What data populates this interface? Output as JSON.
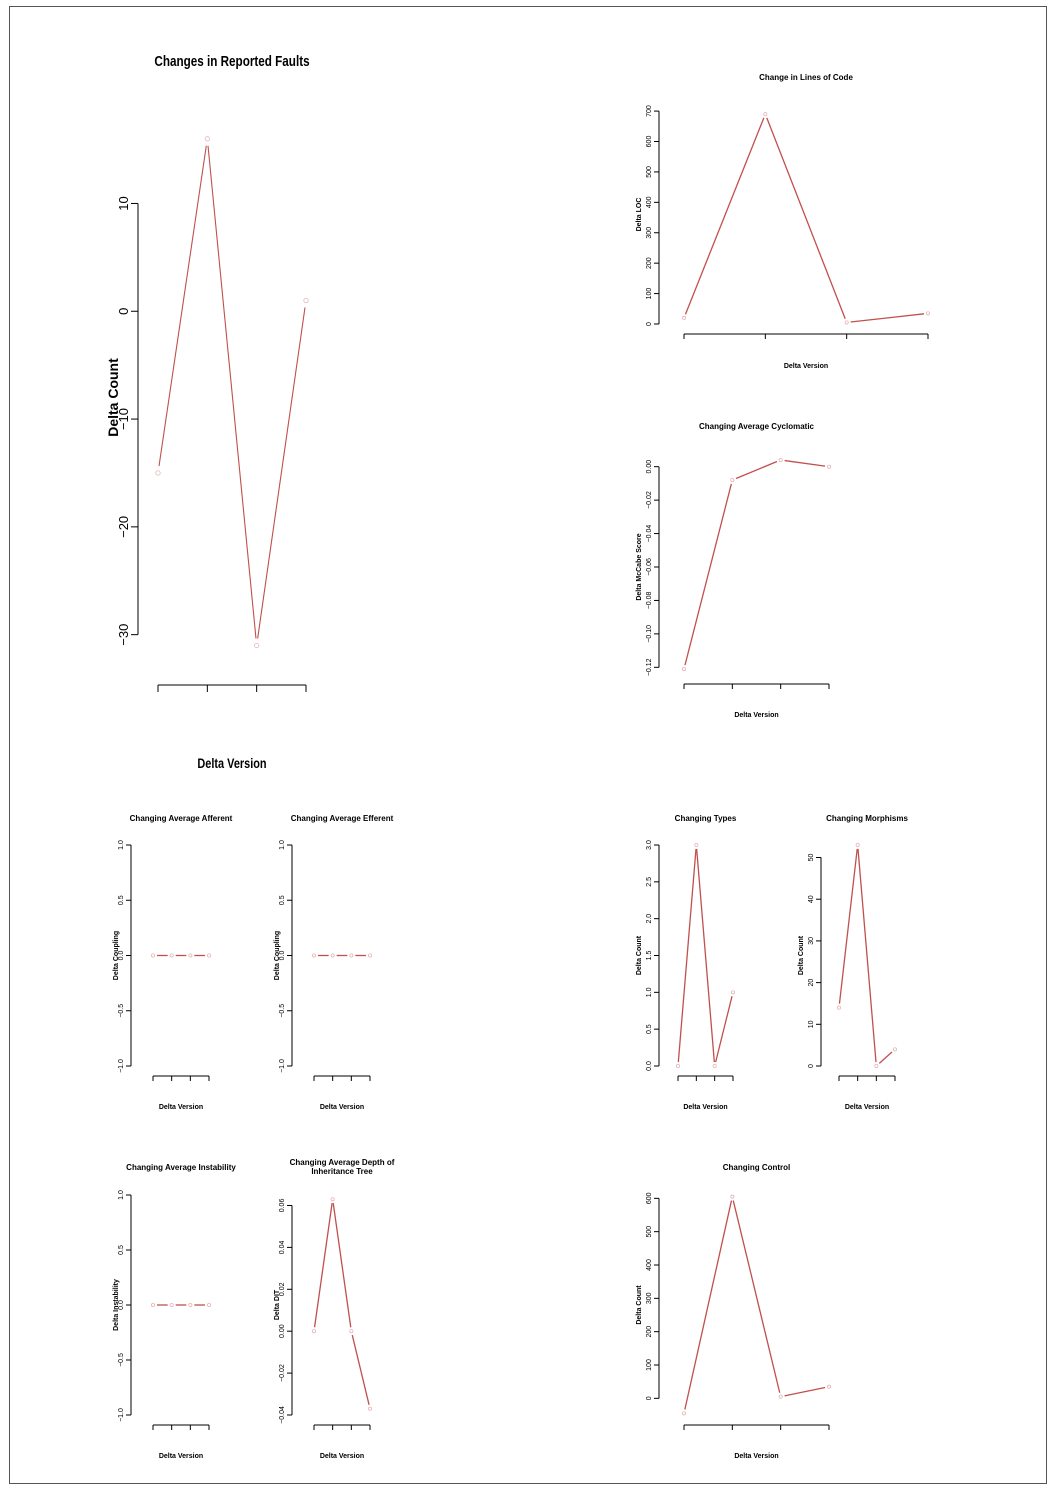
{
  "line_color": "#c0504d",
  "chart_data": [
    {
      "id": "faults",
      "type": "line",
      "title": "Changes in Reported Faults",
      "xlabel": "Delta Version",
      "ylabel": "Delta Count",
      "x": [
        1,
        2,
        3,
        4
      ],
      "values": [
        -15,
        16,
        -31,
        1
      ],
      "ylim": [
        -33,
        17
      ],
      "yticks": [
        -30,
        -20,
        -10,
        0,
        10
      ],
      "yticklabels": [
        "−30",
        "−20",
        "−10",
        "0",
        "10"
      ]
    },
    {
      "id": "loc",
      "type": "line",
      "title": "Change in Lines of Code",
      "xlabel": "Delta Version",
      "ylabel": "Delta LOC",
      "x": [
        1,
        2,
        3,
        4
      ],
      "values": [
        20,
        690,
        5,
        35
      ],
      "ylim": [
        0,
        720
      ],
      "yticks": [
        0,
        100,
        200,
        300,
        400,
        500,
        600,
        700
      ],
      "yticklabels": [
        "0",
        "100",
        "200",
        "300",
        "400",
        "500",
        "600",
        "700"
      ]
    },
    {
      "id": "cyclomatic",
      "type": "line",
      "title": "Changing Average Cyclomatic",
      "xlabel": "Delta Version",
      "ylabel": "Delta McCabe Score",
      "x": [
        1,
        2,
        3,
        4
      ],
      "values": [
        -0.121,
        -0.008,
        0.004,
        0.0
      ],
      "ylim": [
        -0.124,
        0.004
      ],
      "yticks": [
        -0.12,
        -0.1,
        -0.08,
        -0.06,
        -0.04,
        -0.02,
        0.0
      ],
      "yticklabels": [
        "−0.12",
        "−0.10",
        "−0.08",
        "−0.06",
        "−0.04",
        "−0.02",
        "0.00"
      ]
    },
    {
      "id": "afferent",
      "type": "line",
      "title": "Changing Average Afferent",
      "xlabel": "Delta Version",
      "ylabel": "Delta Coupling",
      "x": [
        1,
        2,
        3,
        4
      ],
      "values": [
        0,
        0,
        0,
        0
      ],
      "ylim": [
        -1,
        1
      ],
      "yticks": [
        -1,
        -0.5,
        0,
        0.5,
        1
      ],
      "yticklabels": [
        "−1.0",
        "−0.5",
        "0.0",
        "0.5",
        "1.0"
      ]
    },
    {
      "id": "efferent",
      "type": "line",
      "title": "Changing Average Efferent",
      "xlabel": "Delta Version",
      "ylabel": "Delta Coupling",
      "x": [
        1,
        2,
        3,
        4
      ],
      "values": [
        0,
        0,
        0,
        0
      ],
      "ylim": [
        -1,
        1
      ],
      "yticks": [
        -1,
        -0.5,
        0,
        0.5,
        1
      ],
      "yticklabels": [
        "−1.0",
        "−0.5",
        "0.0",
        "0.5",
        "1.0"
      ]
    },
    {
      "id": "types",
      "type": "line",
      "title": "Changing Types",
      "xlabel": "Delta Version",
      "ylabel": "Delta Count",
      "x": [
        1,
        2,
        3,
        4
      ],
      "values": [
        0,
        3,
        0,
        1
      ],
      "ylim": [
        0,
        3
      ],
      "yticks": [
        0,
        0.5,
        1,
        1.5,
        2,
        2.5,
        3
      ],
      "yticklabels": [
        "0.0",
        "0.5",
        "1.0",
        "1.5",
        "2.0",
        "2.5",
        "3.0"
      ]
    },
    {
      "id": "morphisms",
      "type": "line",
      "title": "Changing Morphisms",
      "xlabel": "Delta Version",
      "ylabel": "Delta Count",
      "x": [
        1,
        2,
        3,
        4
      ],
      "values": [
        14,
        53,
        0,
        4
      ],
      "ylim": [
        0,
        53
      ],
      "yticks": [
        0,
        10,
        20,
        30,
        40,
        50
      ],
      "yticklabels": [
        "0",
        "10",
        "20",
        "30",
        "40",
        "50"
      ]
    },
    {
      "id": "instability",
      "type": "line",
      "title": "Changing Average Instability",
      "xlabel": "Delta Version",
      "ylabel": "Delta Instability",
      "x": [
        1,
        2,
        3,
        4
      ],
      "values": [
        0,
        0,
        0,
        0
      ],
      "ylim": [
        -1,
        1
      ],
      "yticks": [
        -1,
        -0.5,
        0,
        0.5,
        1
      ],
      "yticklabels": [
        "−1.0",
        "−0.5",
        "0.0",
        "0.5",
        "1.0"
      ]
    },
    {
      "id": "dit",
      "type": "line",
      "title": "Changing Average Depth of Inheritance Tree",
      "title_lines": [
        "Changing Average Depth of",
        "Inheritance Tree"
      ],
      "xlabel": "Delta Version",
      "ylabel": "Delta DIT",
      "x": [
        1,
        2,
        3,
        4
      ],
      "values": [
        0.0,
        0.063,
        0.0,
        -0.037
      ],
      "ylim": [
        -0.04,
        0.065
      ],
      "yticks": [
        -0.04,
        -0.02,
        0.0,
        0.02,
        0.04,
        0.06
      ],
      "yticklabels": [
        "−0.04",
        "−0.02",
        "0.00",
        "0.02",
        "0.04",
        "0.06"
      ]
    },
    {
      "id": "control",
      "type": "line",
      "title": "Changing Control",
      "xlabel": "Delta Version",
      "ylabel": "Delta Count",
      "x": [
        1,
        2,
        3,
        4
      ],
      "values": [
        -45,
        605,
        5,
        35
      ],
      "ylim": [
        -50,
        610
      ],
      "yticks": [
        0,
        100,
        200,
        300,
        400,
        500,
        600
      ],
      "yticklabels": [
        "0",
        "100",
        "200",
        "300",
        "400",
        "500",
        "600"
      ]
    }
  ]
}
